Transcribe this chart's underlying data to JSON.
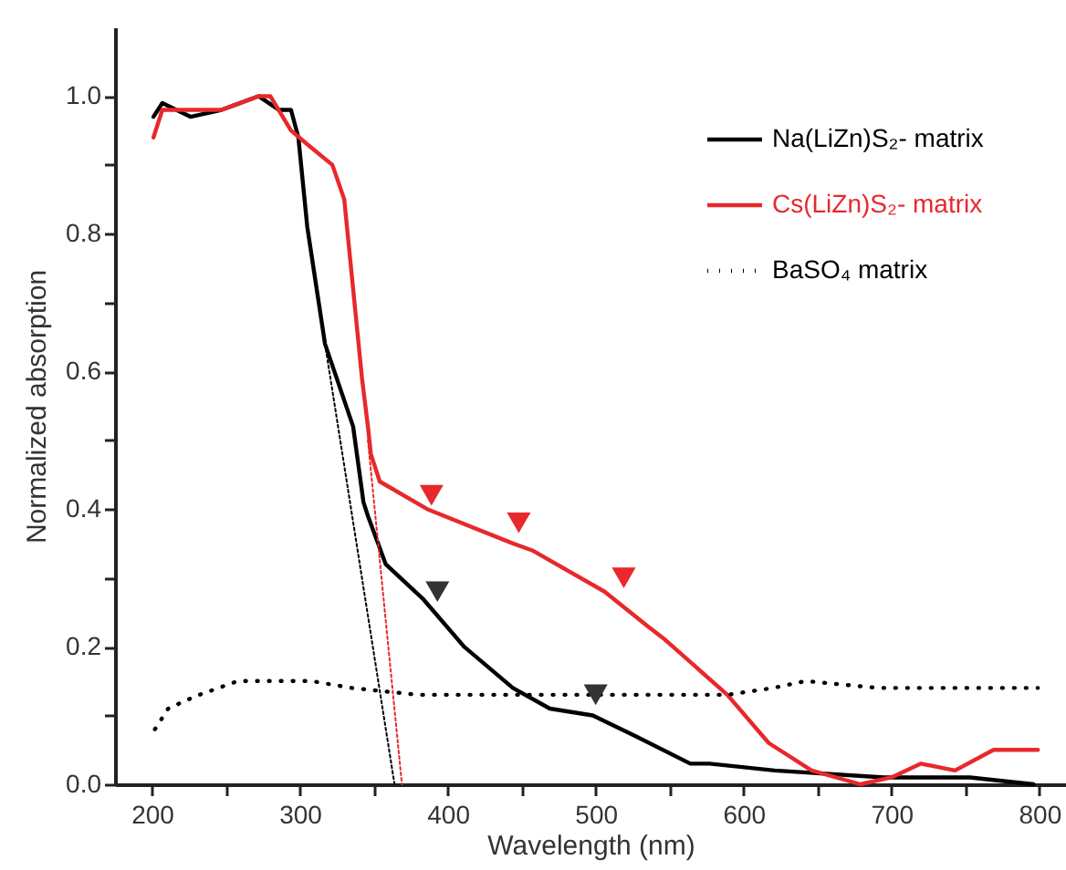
{
  "chart_data": {
    "type": "line",
    "xlabel": "Wavelength (nm)",
    "ylabel": "Normalized absorption",
    "xlim": [
      175,
      818
    ],
    "ylim": [
      0,
      1.1
    ],
    "xticks": [
      200,
      {
        "value": 250,
        "label": null
      },
      300,
      {
        "value": 350,
        "label": null
      },
      400,
      {
        "value": 450,
        "label": null
      },
      500,
      {
        "value": 550,
        "label": null
      },
      600,
      {
        "value": 650,
        "label": null
      },
      700,
      {
        "value": 750,
        "label": null
      },
      800
    ],
    "yticks": [
      {
        "value": 0,
        "label": "0.0"
      },
      {
        "value": 0.1,
        "label": null
      },
      0.2,
      {
        "value": 0.3,
        "label": null
      },
      0.4,
      {
        "value": 0.5,
        "label": null
      },
      0.6,
      {
        "value": 0.7,
        "label": null
      },
      0.8,
      {
        "value": 0.9,
        "label": null
      },
      {
        "value": 1,
        "label": "1.0"
      }
    ],
    "grid": false,
    "legend": "top right",
    "line_style": "solid",
    "series": [
      {
        "name": "Na(LiZn)S₂- matrix",
        "color": "#000000",
        "x": [
          201,
          207,
          226,
          247,
          272,
          286,
          294,
          299,
          305,
          317,
          336,
          343,
          346,
          358,
          383,
          411,
          444,
          469,
          498,
          527,
          564,
          577,
          621,
          695,
          753,
          796
        ],
        "values": [
          0.97,
          0.99,
          0.97,
          0.98,
          1.0,
          0.98,
          0.98,
          0.94,
          0.81,
          0.64,
          0.52,
          0.41,
          0.39,
          0.32,
          0.27,
          0.2,
          0.14,
          0.11,
          0.1,
          0.07,
          0.03,
          0.03,
          0.02,
          0.01,
          0.01,
          0.0
        ]
      },
      {
        "name": "Cs(LiZn)S₂- matrix",
        "color": "#e8282b",
        "x": [
          201,
          207,
          226,
          247,
          272,
          280,
          294,
          305,
          322,
          330,
          336,
          342,
          346,
          348,
          354,
          386,
          444,
          457,
          506,
          535,
          547,
          568,
          589,
          617,
          646,
          679,
          700,
          720,
          743,
          769,
          799
        ],
        "values": [
          0.94,
          0.98,
          0.98,
          0.98,
          1.0,
          1.0,
          0.95,
          0.93,
          0.9,
          0.85,
          0.72,
          0.59,
          0.52,
          0.48,
          0.44,
          0.4,
          0.35,
          0.34,
          0.28,
          0.23,
          0.21,
          0.17,
          0.13,
          0.06,
          0.02,
          0.0,
          0.01,
          0.03,
          0.02,
          0.05,
          0.05
        ]
      },
      {
        "name": "BaSO₄ matrix",
        "color": "#000000",
        "line_style": "dotted",
        "x": [
          202,
          211,
          221,
          232,
          245,
          258,
          283,
          308,
          335,
          380,
          420,
          460,
          500,
          540,
          567,
          589,
          620,
          642,
          691,
          740,
          799
        ],
        "values": [
          0.08,
          0.11,
          0.12,
          0.13,
          0.14,
          0.15,
          0.15,
          0.15,
          0.14,
          0.13,
          0.13,
          0.13,
          0.13,
          0.13,
          0.13,
          0.13,
          0.14,
          0.15,
          0.14,
          0.14,
          0.14
        ]
      },
      {
        "type": "line",
        "color": "#000000",
        "line_style": "dotted",
        "x": [
          317,
          364
        ],
        "values": [
          0.64,
          0
        ]
      },
      {
        "type": "line",
        "color": "#e8282b",
        "line_style": "dotted",
        "x": [
          346,
          369
        ],
        "values": [
          0.5,
          0
        ]
      },
      {
        "type": "scatter",
        "marker": "triangle",
        "color": "#e8282b",
        "x": [
          389,
          448,
          519
        ],
        "values": [
          0.42,
          0.38,
          0.3
        ]
      },
      {
        "type": "scatter",
        "marker": "triangle",
        "color": "#333333",
        "x": [
          393,
          500
        ],
        "values": [
          0.28,
          0.13
        ]
      }
    ]
  }
}
